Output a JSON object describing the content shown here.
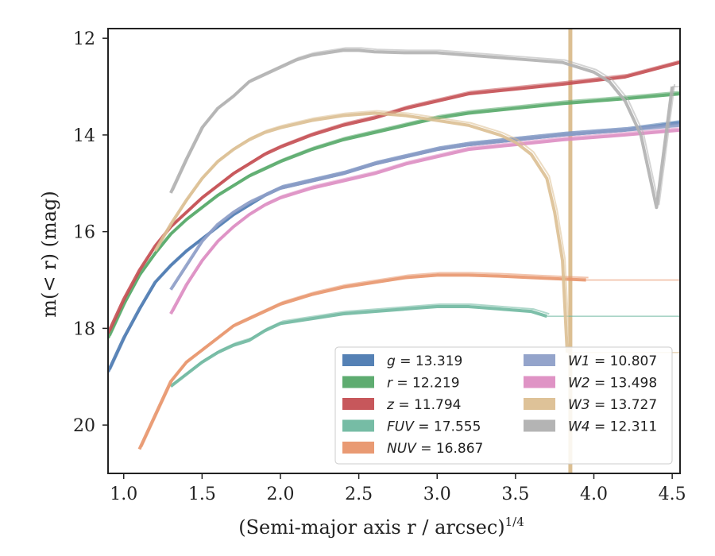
{
  "chart_data": {
    "type": "line",
    "xlabel": "(Semi-major axis r / arcsec)",
    "xlabel_superscript": "1/4",
    "ylabel": "m(< r) (mag)",
    "xlim": [
      0.9,
      4.55
    ],
    "ylim": [
      21.0,
      11.8
    ],
    "y_inverted": true,
    "grid": false,
    "legend_placement": "lower-right",
    "xticks": [
      "1.0",
      "1.5",
      "2.0",
      "2.5",
      "3.0",
      "3.5",
      "4.0",
      "4.5"
    ],
    "yticks": [
      "12",
      "14",
      "16",
      "18",
      "20"
    ],
    "series": [
      {
        "name": "g = 13.319",
        "prefix": "g",
        "value": "13.319",
        "color": "#4c7ab1",
        "x": [
          0.9,
          1.0,
          1.1,
          1.2,
          1.3,
          1.4,
          1.5,
          1.6,
          1.7,
          1.8,
          1.9,
          2.0,
          2.2,
          2.4,
          2.6,
          2.8,
          3.0,
          3.2,
          3.5,
          3.8,
          4.2,
          4.55
        ],
        "y": [
          18.9,
          18.2,
          17.6,
          17.05,
          16.7,
          16.4,
          16.15,
          15.9,
          15.65,
          15.45,
          15.25,
          15.1,
          14.95,
          14.8,
          14.6,
          14.45,
          14.3,
          14.2,
          14.1,
          14.0,
          13.9,
          13.75
        ]
      },
      {
        "name": "r = 12.219",
        "prefix": "r",
        "value": "12.219",
        "color": "#55a868",
        "x": [
          0.9,
          1.0,
          1.1,
          1.2,
          1.3,
          1.4,
          1.5,
          1.6,
          1.7,
          1.8,
          1.9,
          2.0,
          2.2,
          2.4,
          2.6,
          2.8,
          3.0,
          3.2,
          3.5,
          3.8,
          4.2,
          4.55
        ],
        "y": [
          18.2,
          17.5,
          16.9,
          16.45,
          16.05,
          15.75,
          15.5,
          15.25,
          15.05,
          14.85,
          14.7,
          14.55,
          14.3,
          14.1,
          13.95,
          13.8,
          13.65,
          13.55,
          13.45,
          13.35,
          13.25,
          13.15
        ]
      },
      {
        "name": "z = 11.794",
        "prefix": "z",
        "value": "11.794",
        "color": "#c44e52",
        "x": [
          0.9,
          1.0,
          1.1,
          1.2,
          1.3,
          1.4,
          1.5,
          1.6,
          1.7,
          1.8,
          1.9,
          2.0,
          2.2,
          2.4,
          2.6,
          2.8,
          3.0,
          3.2,
          3.5,
          3.8,
          4.2,
          4.55
        ],
        "y": [
          18.1,
          17.4,
          16.8,
          16.3,
          15.9,
          15.6,
          15.3,
          15.05,
          14.8,
          14.6,
          14.4,
          14.25,
          14.0,
          13.8,
          13.65,
          13.45,
          13.3,
          13.15,
          13.05,
          12.95,
          12.8,
          12.5
        ]
      },
      {
        "name": "FUV = 17.555",
        "prefix": "FUV",
        "value": "17.555",
        "color": "#6fb8a0",
        "x": [
          1.3,
          1.4,
          1.5,
          1.6,
          1.7,
          1.8,
          1.9,
          2.0,
          2.2,
          2.4,
          2.6,
          2.8,
          3.0,
          3.2,
          3.4,
          3.6,
          3.7
        ],
        "y": [
          19.2,
          18.95,
          18.7,
          18.5,
          18.35,
          18.25,
          18.05,
          17.9,
          17.8,
          17.7,
          17.65,
          17.6,
          17.55,
          17.55,
          17.6,
          17.65,
          17.75
        ]
      },
      {
        "name": "NUV = 16.867",
        "prefix": "NUV",
        "value": "16.867",
        "color": "#e8956b",
        "x": [
          1.1,
          1.2,
          1.3,
          1.4,
          1.5,
          1.6,
          1.7,
          1.8,
          1.9,
          2.0,
          2.2,
          2.4,
          2.6,
          2.8,
          3.0,
          3.2,
          3.4,
          3.6,
          3.8,
          3.95
        ],
        "y": [
          20.5,
          19.8,
          19.1,
          18.7,
          18.45,
          18.2,
          17.95,
          17.8,
          17.65,
          17.5,
          17.3,
          17.15,
          17.05,
          16.95,
          16.9,
          16.9,
          16.92,
          16.95,
          16.98,
          17.0
        ]
      },
      {
        "name": "W1 = 10.807",
        "prefix": "W1",
        "value": "10.807",
        "color": "#8e9fc8",
        "x": [
          1.3,
          1.4,
          1.5,
          1.6,
          1.7,
          1.8,
          1.9,
          2.0,
          2.2,
          2.4,
          2.6,
          2.8,
          3.0,
          3.2,
          3.5,
          3.8,
          4.2,
          4.55
        ],
        "y": [
          17.2,
          16.7,
          16.2,
          15.85,
          15.6,
          15.4,
          15.25,
          15.1,
          14.95,
          14.8,
          14.6,
          14.45,
          14.3,
          14.2,
          14.1,
          14.0,
          13.9,
          13.8
        ]
      },
      {
        "name": "W2 = 13.498",
        "prefix": "W2",
        "value": "13.498",
        "color": "#dd8dc2",
        "x": [
          1.3,
          1.4,
          1.5,
          1.6,
          1.7,
          1.8,
          1.9,
          2.0,
          2.2,
          2.4,
          2.6,
          2.8,
          3.0,
          3.2,
          3.5,
          3.8,
          4.2,
          4.55
        ],
        "y": [
          17.7,
          17.1,
          16.6,
          16.2,
          15.9,
          15.65,
          15.45,
          15.3,
          15.1,
          14.95,
          14.8,
          14.6,
          14.45,
          14.3,
          14.2,
          14.1,
          14.0,
          13.9
        ]
      },
      {
        "name": "W3 = 13.727",
        "prefix": "W3",
        "value": "13.727",
        "color": "#dcbf92",
        "x": [
          1.2,
          1.3,
          1.4,
          1.5,
          1.6,
          1.7,
          1.8,
          1.9,
          2.0,
          2.2,
          2.4,
          2.6,
          2.8,
          3.0,
          3.2,
          3.4,
          3.5,
          3.6,
          3.7,
          3.75,
          3.8,
          3.83
        ],
        "y": [
          16.4,
          15.85,
          15.35,
          14.9,
          14.55,
          14.3,
          14.1,
          13.95,
          13.85,
          13.7,
          13.6,
          13.55,
          13.6,
          13.7,
          13.8,
          14.0,
          14.15,
          14.4,
          14.9,
          15.6,
          16.6,
          18.5
        ]
      },
      {
        "name": "W4 = 12.311",
        "prefix": "W4",
        "value": "12.311",
        "color": "#b0b0b0",
        "x": [
          1.3,
          1.4,
          1.5,
          1.6,
          1.7,
          1.8,
          1.9,
          2.0,
          2.1,
          2.2,
          2.3,
          2.4,
          2.5,
          2.6,
          2.8,
          3.0,
          3.2,
          3.4,
          3.6,
          3.8,
          3.9,
          4.0,
          4.1,
          4.2,
          4.3,
          4.4,
          4.5
        ],
        "y": [
          15.2,
          14.5,
          13.85,
          13.45,
          13.2,
          12.9,
          12.75,
          12.6,
          12.45,
          12.35,
          12.3,
          12.25,
          12.25,
          12.28,
          12.3,
          12.3,
          12.35,
          12.4,
          12.45,
          12.5,
          12.6,
          12.7,
          12.9,
          13.3,
          14.0,
          15.5,
          13.0
        ]
      }
    ],
    "w3_vertical_line_x": 3.85
  }
}
